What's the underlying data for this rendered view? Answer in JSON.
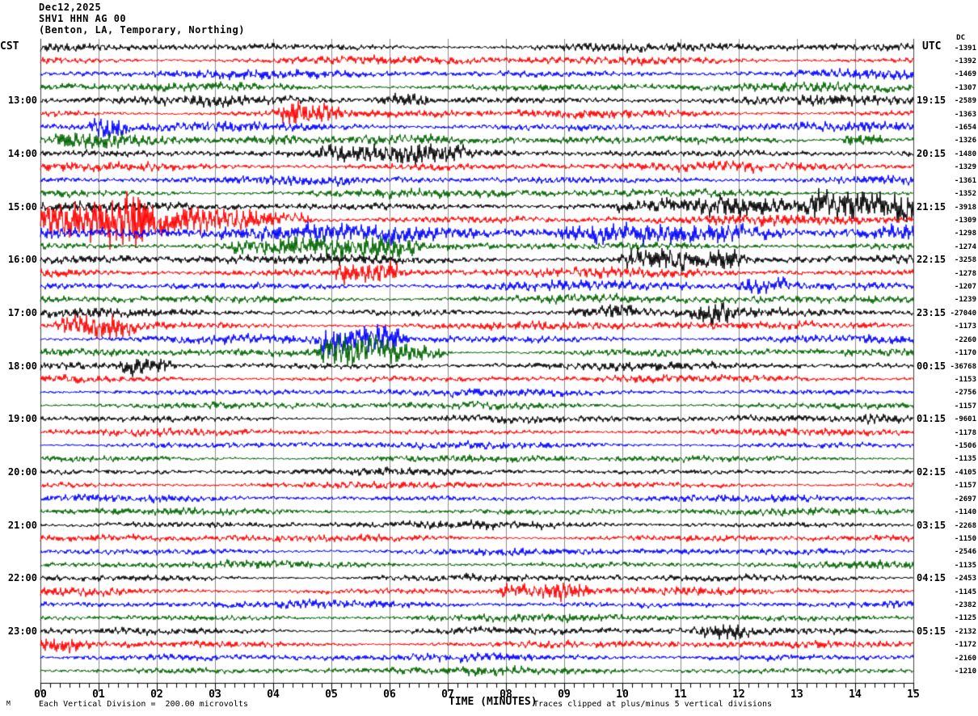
{
  "header": {
    "date": "Dec12,2025",
    "station": "SHV1 HHN AG 00",
    "location": "(Benton, LA, Temporary, Northing)"
  },
  "axes": {
    "left_corner_label": "CST",
    "right_corner_label": "UTC",
    "dc_column_header": "DC",
    "x_title": "TIME (MINUTES)",
    "x_tick_labels": [
      "00",
      "01",
      "02",
      "03",
      "04",
      "05",
      "06",
      "07",
      "08",
      "09",
      "10",
      "11",
      "12",
      "13",
      "14",
      "15"
    ]
  },
  "footer": {
    "scale_note": "Each Vertical Division =  200.00 microvolts",
    "clip_note": "Traces clipped at plus/minus 5 vertical divisions",
    "corner_mark": "M"
  },
  "colors": {
    "trace_cycle": [
      "#000000",
      "#ff0000",
      "#0000ff",
      "#006400"
    ],
    "grid": "#8a8a8a",
    "border": "#444444",
    "axis": "#000000",
    "background": "#ffffff"
  },
  "chart_data": {
    "type": "line",
    "subtype": "helicorder-seismogram",
    "title": "SHV1 HHN AG 00 — Dec12,2025 — (Benton, LA, Temporary, Northing)",
    "xlabel": "TIME (MINUTES)",
    "x_range_minutes": [
      0,
      15
    ],
    "row_duration_minutes": 15,
    "minor_ticks_per_minute": 6,
    "vertical_division_microvolts": "200.00",
    "clip_divisions": 5,
    "rows": [
      {
        "cst": "",
        "utc": "",
        "dc": "-1391",
        "base_amp": 4.0
      },
      {
        "cst": "",
        "utc": "",
        "dc": "-1392",
        "base_amp": 4.0
      },
      {
        "cst": "",
        "utc": "",
        "dc": "-1469",
        "base_amp": 4.0
      },
      {
        "cst": "",
        "utc": "",
        "dc": "-1307",
        "base_amp": 4.0
      },
      {
        "cst": "13:00",
        "utc": "19:15",
        "dc": "-2589",
        "base_amp": 4.2
      },
      {
        "cst": "",
        "utc": "",
        "dc": "-1363",
        "base_amp": 4.0
      },
      {
        "cst": "",
        "utc": "",
        "dc": "-1654",
        "base_amp": 4.0
      },
      {
        "cst": "",
        "utc": "",
        "dc": "-1326",
        "base_amp": 4.2
      },
      {
        "cst": "14:00",
        "utc": "20:15",
        "dc": "-1480",
        "base_amp": 4.2
      },
      {
        "cst": "",
        "utc": "",
        "dc": "-1329",
        "base_amp": 4.0
      },
      {
        "cst": "",
        "utc": "",
        "dc": "-1361",
        "base_amp": 4.0
      },
      {
        "cst": "",
        "utc": "",
        "dc": "-1352",
        "base_amp": 4.0
      },
      {
        "cst": "15:00",
        "utc": "21:15",
        "dc": "-3918",
        "base_amp": 4.4
      },
      {
        "cst": "",
        "utc": "",
        "dc": "-1309",
        "base_amp": 4.4
      },
      {
        "cst": "",
        "utc": "",
        "dc": "-1298",
        "base_amp": 5.0
      },
      {
        "cst": "",
        "utc": "",
        "dc": "-1274",
        "base_amp": 4.4
      },
      {
        "cst": "16:00",
        "utc": "22:15",
        "dc": "-3258",
        "base_amp": 4.4
      },
      {
        "cst": "",
        "utc": "",
        "dc": "-1278",
        "base_amp": 4.2
      },
      {
        "cst": "",
        "utc": "",
        "dc": "-1207",
        "base_amp": 4.2
      },
      {
        "cst": "",
        "utc": "",
        "dc": "-1239",
        "base_amp": 4.0
      },
      {
        "cst": "17:00",
        "utc": "23:15",
        "dc": "-27040",
        "base_amp": 4.0
      },
      {
        "cst": "",
        "utc": "",
        "dc": "-1173",
        "base_amp": 3.8
      },
      {
        "cst": "",
        "utc": "",
        "dc": "-2260",
        "base_amp": 3.8
      },
      {
        "cst": "",
        "utc": "",
        "dc": "-1170",
        "base_amp": 3.8
      },
      {
        "cst": "18:00",
        "utc": "00:15",
        "dc": "-36768",
        "base_amp": 3.6
      },
      {
        "cst": "",
        "utc": "",
        "dc": "-1153",
        "base_amp": 3.4
      },
      {
        "cst": "",
        "utc": "",
        "dc": "-2756",
        "base_amp": 3.4
      },
      {
        "cst": "",
        "utc": "",
        "dc": "-1157",
        "base_amp": 3.4
      },
      {
        "cst": "19:00",
        "utc": "01:15",
        "dc": "-9601",
        "base_amp": 3.3
      },
      {
        "cst": "",
        "utc": "",
        "dc": "-1178",
        "base_amp": 3.2
      },
      {
        "cst": "",
        "utc": "",
        "dc": "-1506",
        "base_amp": 3.2
      },
      {
        "cst": "",
        "utc": "",
        "dc": "-1135",
        "base_amp": 3.2
      },
      {
        "cst": "20:00",
        "utc": "02:15",
        "dc": "-4105",
        "base_amp": 3.2
      },
      {
        "cst": "",
        "utc": "",
        "dc": "-1157",
        "base_amp": 3.2
      },
      {
        "cst": "",
        "utc": "",
        "dc": "-2697",
        "base_amp": 3.2
      },
      {
        "cst": "",
        "utc": "",
        "dc": "-1140",
        "base_amp": 3.3
      },
      {
        "cst": "21:00",
        "utc": "03:15",
        "dc": "-2268",
        "base_amp": 3.4
      },
      {
        "cst": "",
        "utc": "",
        "dc": "-1150",
        "base_amp": 3.4
      },
      {
        "cst": "",
        "utc": "",
        "dc": "-2546",
        "base_amp": 3.4
      },
      {
        "cst": "",
        "utc": "",
        "dc": "-1135",
        "base_amp": 3.4
      },
      {
        "cst": "22:00",
        "utc": "04:15",
        "dc": "-2453",
        "base_amp": 3.4
      },
      {
        "cst": "",
        "utc": "",
        "dc": "-1145",
        "base_amp": 3.5
      },
      {
        "cst": "",
        "utc": "",
        "dc": "-2382",
        "base_amp": 3.5
      },
      {
        "cst": "",
        "utc": "",
        "dc": "-1125",
        "base_amp": 3.4
      },
      {
        "cst": "23:00",
        "utc": "05:15",
        "dc": "-2132",
        "base_amp": 3.6
      },
      {
        "cst": "",
        "utc": "",
        "dc": "-1172",
        "base_amp": 3.6
      },
      {
        "cst": "",
        "utc": "",
        "dc": "-2160",
        "base_amp": 3.6
      },
      {
        "cst": "",
        "utc": "",
        "dc": "-1210",
        "base_amp": 3.6
      }
    ],
    "events": [
      {
        "row": 4,
        "start": 5.9,
        "end": 6.6,
        "amp": 2.5
      },
      {
        "row": 5,
        "start": 4.2,
        "end": 4.9,
        "amp": 3.0
      },
      {
        "row": 6,
        "start": 1.0,
        "end": 1.3,
        "amp": 4.0
      },
      {
        "row": 7,
        "start": 0.4,
        "end": 4.2,
        "amp": 2.4
      },
      {
        "row": 8,
        "start": 4.9,
        "end": 7.3,
        "amp": 1.8
      },
      {
        "row": 7,
        "start": 13.9,
        "end": 14.3,
        "amp": 4.5
      },
      {
        "row": 12,
        "start": 10.0,
        "end": 13.4,
        "amp": 1.7
      },
      {
        "row": 12,
        "start": 13.4,
        "end": 15.0,
        "amp": 4.5
      },
      {
        "row": 13,
        "start": 0.0,
        "end": 1.6,
        "amp": 4.5
      },
      {
        "row": 13,
        "start": 1.6,
        "end": 4.5,
        "amp": 2.8
      },
      {
        "row": 14,
        "start": 0.0,
        "end": 15.0,
        "amp": 1.5
      },
      {
        "row": 14,
        "start": 9.0,
        "end": 12.6,
        "amp": 2.2
      },
      {
        "row": 15,
        "start": 3.3,
        "end": 6.3,
        "amp": 2.1
      },
      {
        "row": 16,
        "start": 10.1,
        "end": 11.9,
        "amp": 2.8
      },
      {
        "row": 17,
        "start": 5.2,
        "end": 6.1,
        "amp": 3.6
      },
      {
        "row": 18,
        "start": 12.1,
        "end": 12.7,
        "amp": 2.5
      },
      {
        "row": 20,
        "start": 9.2,
        "end": 10.0,
        "amp": 2.6
      },
      {
        "row": 20,
        "start": 11.3,
        "end": 11.8,
        "amp": 2.0
      },
      {
        "row": 21,
        "start": 0.4,
        "end": 1.4,
        "amp": 3.6
      },
      {
        "row": 22,
        "start": 4.9,
        "end": 6.1,
        "amp": 4.6
      },
      {
        "row": 23,
        "start": 4.9,
        "end": 6.8,
        "amp": 4.0
      },
      {
        "row": 24,
        "start": 1.5,
        "end": 2.1,
        "amp": 3.6
      },
      {
        "row": 28,
        "start": 14.2,
        "end": 14.8,
        "amp": 2.6
      },
      {
        "row": 41,
        "start": 8.0,
        "end": 9.2,
        "amp": 3.6
      },
      {
        "row": 44,
        "start": 11.3,
        "end": 12.0,
        "amp": 2.0
      },
      {
        "row": 45,
        "start": 0.1,
        "end": 0.6,
        "amp": 2.6
      }
    ]
  }
}
